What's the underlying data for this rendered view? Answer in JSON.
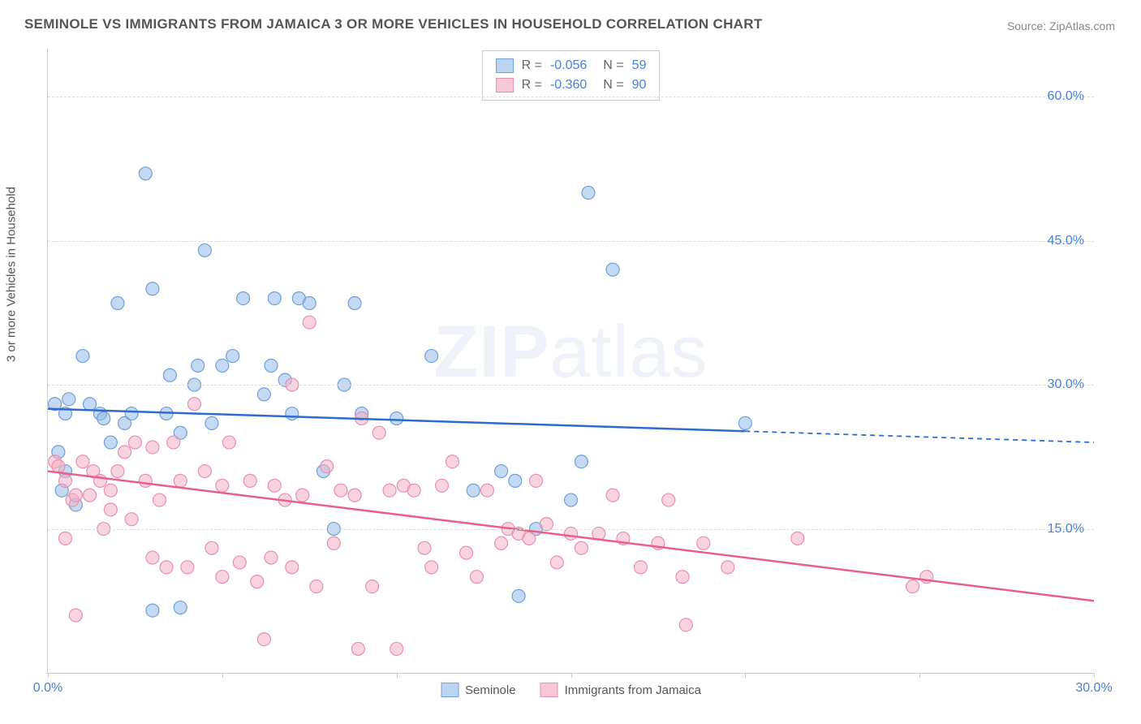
{
  "title": "SEMINOLE VS IMMIGRANTS FROM JAMAICA 3 OR MORE VEHICLES IN HOUSEHOLD CORRELATION CHART",
  "source": "Source: ZipAtlas.com",
  "y_axis_label": "3 or more Vehicles in Household",
  "watermark": {
    "bold": "ZIP",
    "rest": "atlas"
  },
  "chart": {
    "type": "scatter",
    "background_color": "#ffffff",
    "grid_color": "#dddddd",
    "axis_color": "#cccccc",
    "xlim": [
      0,
      30
    ],
    "ylim": [
      0,
      65
    ],
    "x_ticks": [
      0,
      5,
      10,
      15,
      20,
      25,
      30
    ],
    "x_tick_labels": {
      "0": "0.0%",
      "30": "30.0%"
    },
    "y_gridlines": [
      15,
      30,
      45,
      60
    ],
    "y_tick_labels": [
      "15.0%",
      "30.0%",
      "45.0%",
      "60.0%"
    ],
    "series": [
      {
        "name": "Seminole",
        "key": "seminole",
        "marker_color_fill": "rgba(147,186,233,0.55)",
        "marker_color_stroke": "#6fa0d8",
        "swatch_fill": "#bcd4f0",
        "swatch_border": "#6fa0d8",
        "line_color": "#2e6bd0",
        "marker_radius": 8,
        "R": "-0.056",
        "N": "59",
        "trend": {
          "x1": 0,
          "y1": 27.5,
          "x2": 30,
          "y2": 24.0,
          "solid_until_x": 20
        },
        "points": [
          [
            0.2,
            28
          ],
          [
            0.3,
            23
          ],
          [
            0.4,
            19
          ],
          [
            0.5,
            21
          ],
          [
            0.5,
            27
          ],
          [
            0.6,
            28.5
          ],
          [
            0.8,
            17.5
          ],
          [
            1.0,
            33
          ],
          [
            1.2,
            28
          ],
          [
            1.5,
            27
          ],
          [
            1.6,
            26.5
          ],
          [
            1.8,
            24
          ],
          [
            2.0,
            38.5
          ],
          [
            2.2,
            26
          ],
          [
            2.4,
            27
          ],
          [
            2.8,
            52
          ],
          [
            3.0,
            40
          ],
          [
            3.0,
            6.5
          ],
          [
            3.4,
            27
          ],
          [
            3.5,
            31
          ],
          [
            3.8,
            6.8
          ],
          [
            3.8,
            25
          ],
          [
            4.2,
            30
          ],
          [
            4.3,
            32
          ],
          [
            4.5,
            44
          ],
          [
            4.7,
            26
          ],
          [
            5.0,
            32
          ],
          [
            5.3,
            33
          ],
          [
            5.6,
            39
          ],
          [
            6.2,
            29
          ],
          [
            6.4,
            32
          ],
          [
            6.5,
            39
          ],
          [
            6.8,
            30.5
          ],
          [
            7.0,
            27
          ],
          [
            7.2,
            39
          ],
          [
            7.5,
            38.5
          ],
          [
            7.9,
            21
          ],
          [
            8.2,
            15
          ],
          [
            8.5,
            30
          ],
          [
            8.8,
            38.5
          ],
          [
            9.0,
            27
          ],
          [
            10.0,
            26.5
          ],
          [
            11.0,
            33
          ],
          [
            12.2,
            19
          ],
          [
            13.0,
            21
          ],
          [
            13.4,
            20
          ],
          [
            14.0,
            15
          ],
          [
            13.5,
            8
          ],
          [
            15.0,
            18
          ],
          [
            15.3,
            22
          ],
          [
            15.5,
            50
          ],
          [
            16.2,
            42
          ],
          [
            20,
            26
          ]
        ]
      },
      {
        "name": "Immigrants from Jamaica",
        "key": "jamaica",
        "marker_color_fill": "rgba(244,175,196,0.55)",
        "marker_color_stroke": "#e890ad",
        "swatch_fill": "#f7c7d6",
        "swatch_border": "#e890ad",
        "line_color": "#e85f8b",
        "marker_radius": 8,
        "R": "-0.360",
        "N": "90",
        "trend": {
          "x1": 0,
          "y1": 21.0,
          "x2": 30,
          "y2": 7.5,
          "solid_until_x": 30
        },
        "points": [
          [
            0.2,
            22
          ],
          [
            0.3,
            21.5
          ],
          [
            0.5,
            20
          ],
          [
            0.5,
            14
          ],
          [
            0.7,
            18
          ],
          [
            0.8,
            18.5
          ],
          [
            0.8,
            6
          ],
          [
            1.0,
            22
          ],
          [
            1.2,
            18.5
          ],
          [
            1.3,
            21
          ],
          [
            1.5,
            20
          ],
          [
            1.6,
            15
          ],
          [
            1.8,
            19
          ],
          [
            1.8,
            17
          ],
          [
            2.0,
            21
          ],
          [
            2.2,
            23
          ],
          [
            2.4,
            16
          ],
          [
            2.5,
            24
          ],
          [
            2.8,
            20
          ],
          [
            3.0,
            12
          ],
          [
            3.0,
            23.5
          ],
          [
            3.2,
            18
          ],
          [
            3.4,
            11
          ],
          [
            3.6,
            24
          ],
          [
            3.8,
            20
          ],
          [
            4.0,
            11
          ],
          [
            4.2,
            28
          ],
          [
            4.5,
            21
          ],
          [
            4.7,
            13
          ],
          [
            5.0,
            19.5
          ],
          [
            5.0,
            10
          ],
          [
            5.2,
            24
          ],
          [
            5.5,
            11.5
          ],
          [
            5.8,
            20
          ],
          [
            6.0,
            9.5
          ],
          [
            6.2,
            3.5
          ],
          [
            6.4,
            12
          ],
          [
            6.5,
            19.5
          ],
          [
            6.8,
            18
          ],
          [
            7.0,
            30
          ],
          [
            7.0,
            11
          ],
          [
            7.3,
            18.5
          ],
          [
            7.5,
            36.5
          ],
          [
            7.7,
            9
          ],
          [
            8.0,
            21.5
          ],
          [
            8.2,
            13.5
          ],
          [
            8.4,
            19
          ],
          [
            8.8,
            18.5
          ],
          [
            8.9,
            2.5
          ],
          [
            9.0,
            26.5
          ],
          [
            9.3,
            9
          ],
          [
            9.5,
            25
          ],
          [
            9.8,
            19
          ],
          [
            10.0,
            2.5
          ],
          [
            10.2,
            19.5
          ],
          [
            10.5,
            19
          ],
          [
            10.8,
            13
          ],
          [
            11.0,
            11
          ],
          [
            11.3,
            19.5
          ],
          [
            11.6,
            22
          ],
          [
            12.0,
            12.5
          ],
          [
            12.3,
            10
          ],
          [
            12.6,
            19
          ],
          [
            13.0,
            13.5
          ],
          [
            13.2,
            15
          ],
          [
            13.5,
            14.5
          ],
          [
            13.8,
            14
          ],
          [
            14.0,
            20
          ],
          [
            14.3,
            15.5
          ],
          [
            14.6,
            11.5
          ],
          [
            15.0,
            14.5
          ],
          [
            15.3,
            13
          ],
          [
            15.8,
            14.5
          ],
          [
            16.2,
            18.5
          ],
          [
            16.5,
            14
          ],
          [
            17.0,
            11
          ],
          [
            17.5,
            13.5
          ],
          [
            17.8,
            18
          ],
          [
            18.2,
            10
          ],
          [
            18.3,
            5
          ],
          [
            18.8,
            13.5
          ],
          [
            19.5,
            11
          ],
          [
            21.5,
            14
          ],
          [
            24.8,
            9
          ],
          [
            25.2,
            10
          ]
        ]
      }
    ]
  }
}
